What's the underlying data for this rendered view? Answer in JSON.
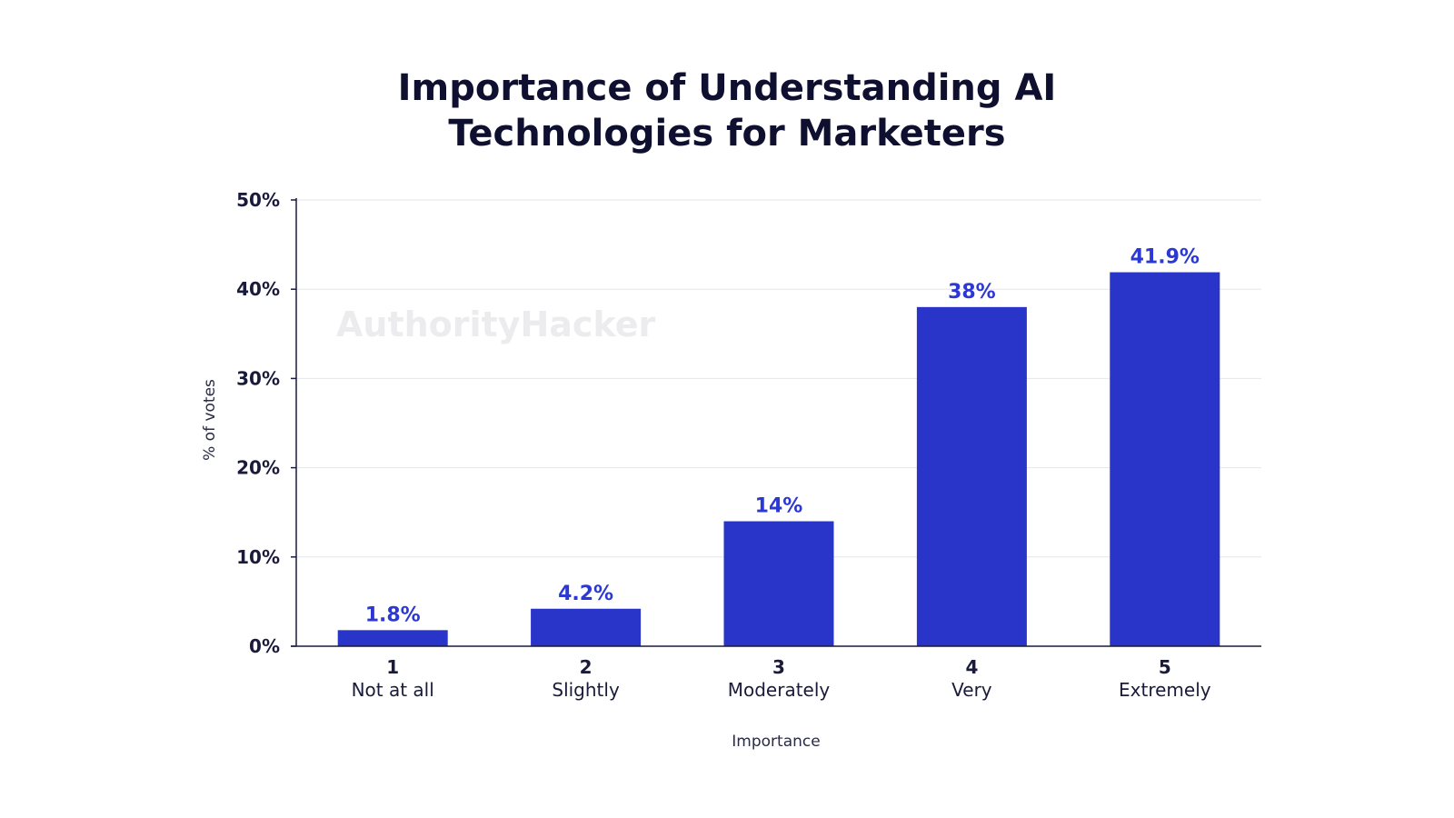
{
  "chart_data": {
    "type": "bar",
    "title_lines": [
      "Importance of Understanding AI",
      "Technologies for Marketers"
    ],
    "categories": [
      {
        "number": "1",
        "label": "Not at all"
      },
      {
        "number": "2",
        "label": "Slightly"
      },
      {
        "number": "3",
        "label": "Moderately"
      },
      {
        "number": "4",
        "label": "Very"
      },
      {
        "number": "5",
        "label": "Extremely"
      }
    ],
    "values": [
      1.8,
      4.2,
      14,
      38,
      41.9
    ],
    "value_labels": [
      "1.8%",
      "4.2%",
      "14%",
      "38%",
      "41.9%"
    ],
    "xlabel": "Importance",
    "ylabel": "% of votes",
    "ylim": [
      0,
      50
    ],
    "y_ticks": [
      {
        "value": 0,
        "label": "0%"
      },
      {
        "value": 10,
        "label": "10%"
      },
      {
        "value": 20,
        "label": "20%"
      },
      {
        "value": 30,
        "label": "30%"
      },
      {
        "value": 40,
        "label": "40%"
      },
      {
        "value": 50,
        "label": "50%"
      }
    ],
    "grid": true,
    "bar_color": "#2935c9",
    "label_color": "#2b38d4",
    "watermark": "AuthorityHacker"
  }
}
